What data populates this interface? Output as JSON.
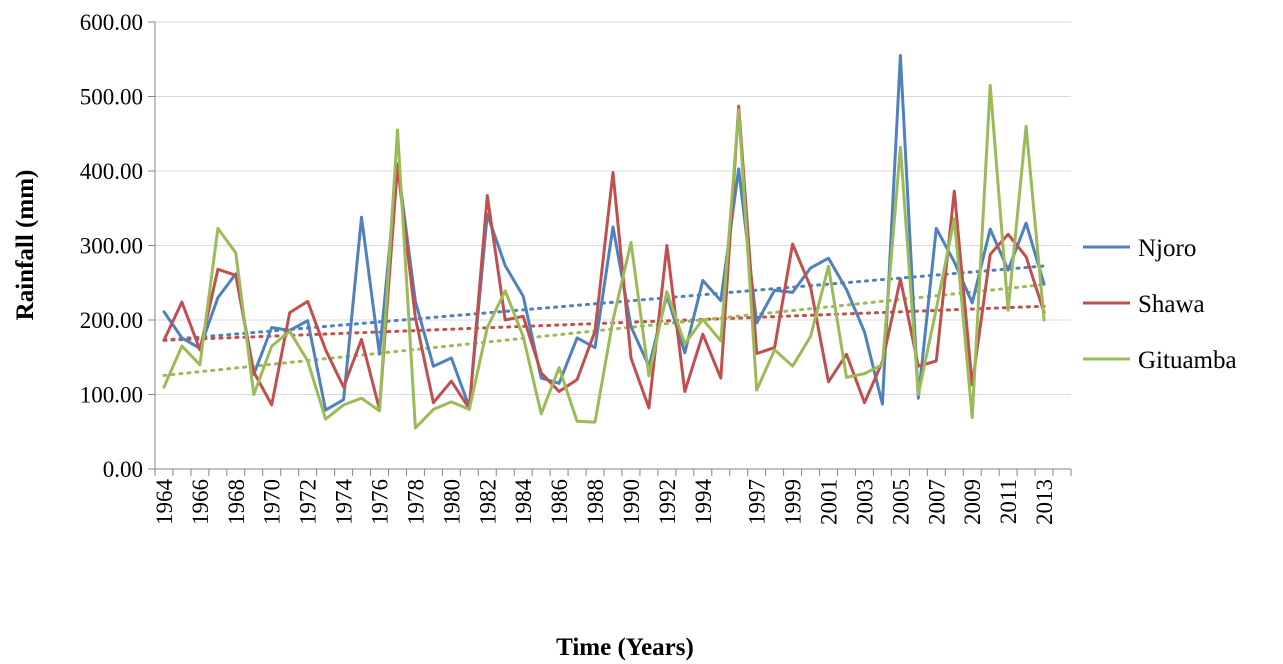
{
  "chart_data": {
    "type": "line",
    "xlabel": "Time (Years)",
    "ylabel": "Rainfall (mm)",
    "ylim": [
      0,
      600
    ],
    "y_ticks": [
      "0.00",
      "100.00",
      "200.00",
      "300.00",
      "400.00",
      "500.00",
      "600.00"
    ],
    "x": [
      1964,
      1965,
      1966,
      1967,
      1968,
      1969,
      1970,
      1971,
      1972,
      1973,
      1974,
      1975,
      1976,
      1977,
      1978,
      1979,
      1980,
      1981,
      1982,
      1983,
      1984,
      1985,
      1986,
      1987,
      1988,
      1989,
      1990,
      1991,
      1992,
      1993,
      1994,
      1995,
      1996,
      1997,
      1998,
      1999,
      2000,
      2001,
      2002,
      2003,
      2004,
      2005,
      2006,
      2007,
      2008,
      2009,
      2010,
      2011,
      2012,
      2013,
      2014
    ],
    "x_tick_labels": [
      "1964",
      "1966",
      "1968",
      "1970",
      "1972",
      "1974",
      "1976",
      "1978",
      "1980",
      "1982",
      "1984",
      "1986",
      "1988",
      "1990",
      "1992",
      "1994",
      "1997",
      "1999",
      "2001",
      "2003",
      "2005",
      "2007",
      "2009",
      "2011",
      "2013"
    ],
    "gridlines": "horizontal",
    "legend_position": "right",
    "trendlines": "dotted linear, one per series",
    "series": [
      {
        "name": "Njoro",
        "color": "#4F81BD",
        "values": [
          211,
          176,
          162,
          230,
          262,
          127,
          190,
          186,
          199,
          79,
          93,
          338,
          154,
          410,
          225,
          138,
          149,
          83,
          342,
          273,
          232,
          122,
          115,
          176,
          163,
          325,
          191,
          138,
          233,
          156,
          253,
          226,
          403,
          196,
          240,
          237,
          270,
          283,
          241,
          184,
          87,
          555,
          95,
          323,
          278,
          223,
          322,
          267,
          330,
          248,
          null
        ]
      },
      {
        "name": "Shawa",
        "color": "#C0504D",
        "values": [
          173,
          224,
          160,
          268,
          260,
          130,
          86,
          210,
          225,
          160,
          110,
          174,
          80,
          407,
          203,
          89,
          118,
          81,
          367,
          200,
          205,
          129,
          104,
          120,
          185,
          398,
          149,
          82,
          300,
          104,
          181,
          122,
          487,
          155,
          163,
          302,
          244,
          117,
          154,
          89,
          144,
          255,
          138,
          145,
          373,
          113,
          288,
          315,
          285,
          210,
          null
        ]
      },
      {
        "name": "Gituamba",
        "color": "#9BBB59",
        "values": [
          110,
          165,
          140,
          323,
          290,
          100,
          165,
          185,
          145,
          67,
          86,
          95,
          78,
          455,
          55,
          80,
          90,
          80,
          190,
          239,
          178,
          74,
          136,
          64,
          63,
          200,
          304,
          125,
          238,
          168,
          201,
          172,
          482,
          106,
          160,
          138,
          178,
          272,
          123,
          128,
          140,
          432,
          100,
          215,
          336,
          69,
          515,
          213,
          460,
          200,
          null
        ]
      }
    ]
  }
}
